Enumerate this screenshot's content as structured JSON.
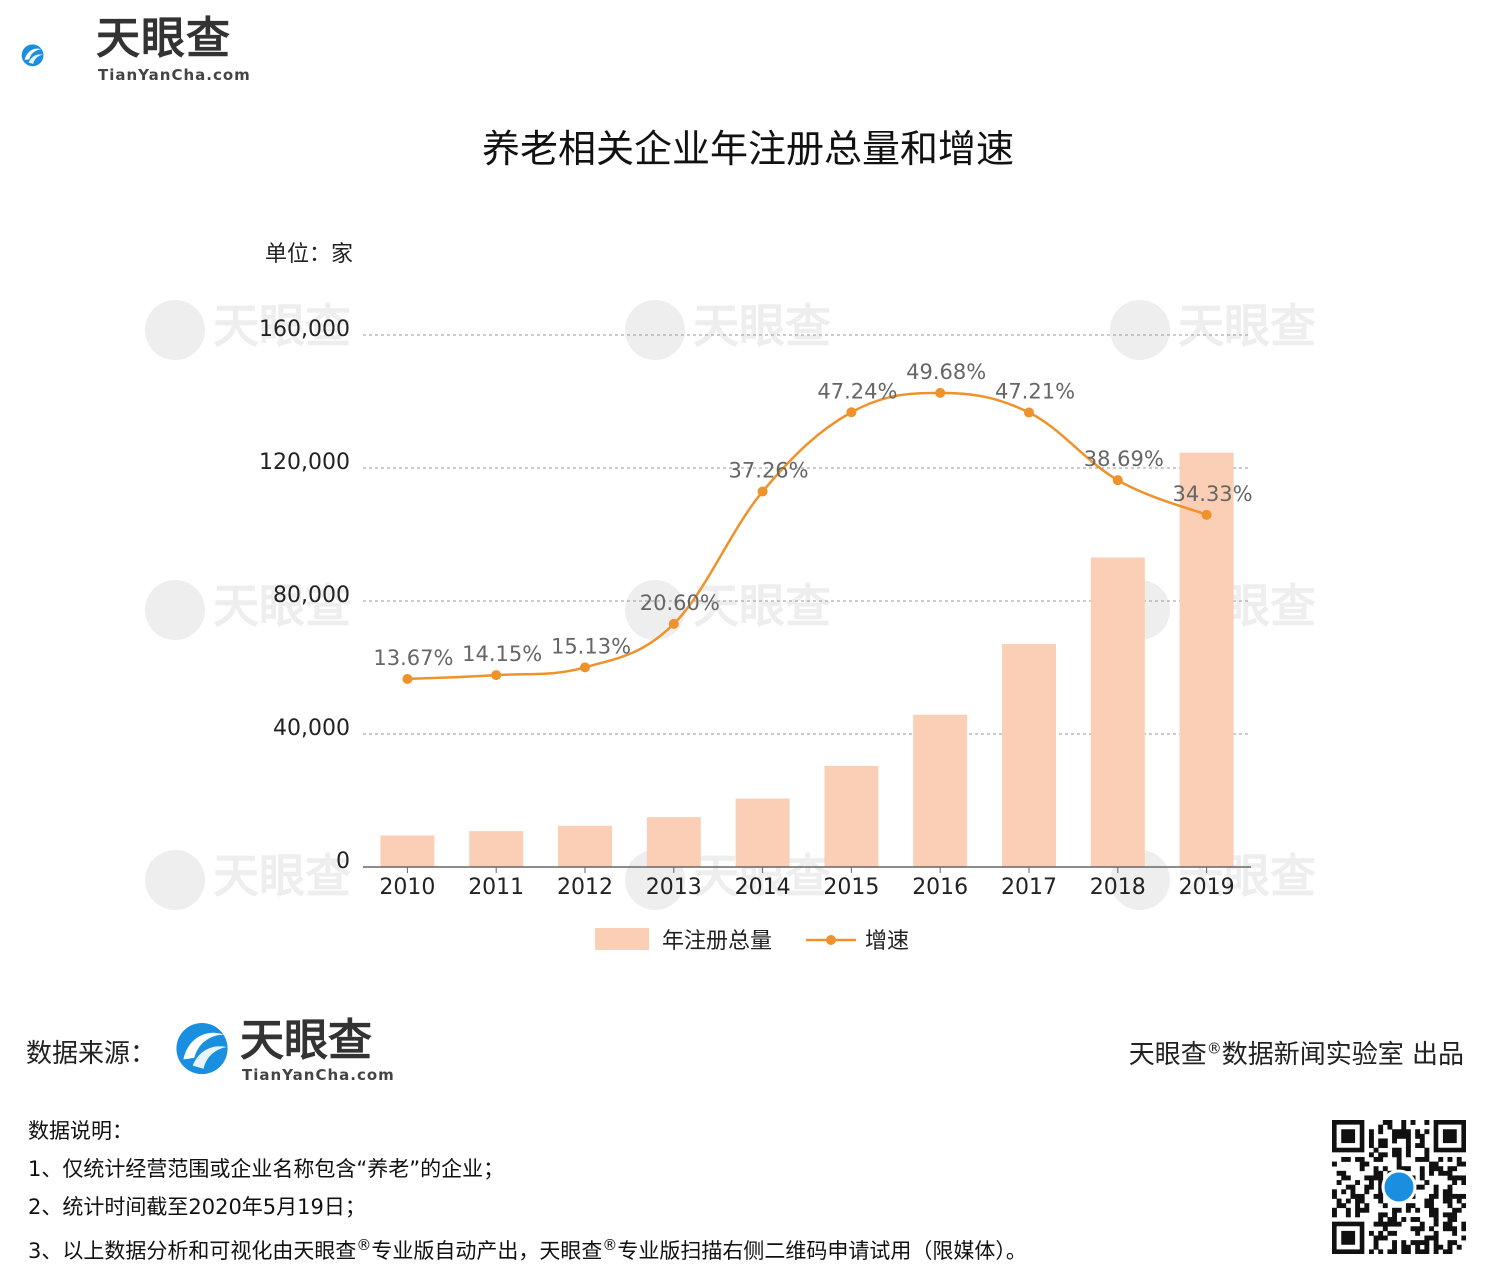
{
  "brand": {
    "name": "天眼查",
    "domain": "TianYanCha.com"
  },
  "title": "养老相关企业年注册总量和增速",
  "unit": "单位：家",
  "colors": {
    "bar": "#fbcfb5",
    "line": "#f0922b",
    "grid": "#999999",
    "label": "#666666"
  },
  "chart_data": {
    "type": "bar",
    "categories": [
      "2010",
      "2011",
      "2012",
      "2013",
      "2014",
      "2015",
      "2016",
      "2017",
      "2018",
      "2019"
    ],
    "series": [
      {
        "name": "年注册总量",
        "type": "bar",
        "values": [
          9500,
          10800,
          12400,
          15000,
          20600,
          30400,
          45800,
          67100,
          93100,
          124600
        ]
      },
      {
        "name": "增速",
        "type": "line",
        "values": [
          13.67,
          14.15,
          15.13,
          20.6,
          37.26,
          47.24,
          49.68,
          47.21,
          38.69,
          34.33
        ],
        "labels": [
          "13.67%",
          "14.15%",
          "15.13%",
          "20.60%",
          "37.26%",
          "47.24%",
          "49.68%",
          "47.21%",
          "38.69%",
          "34.33%"
        ]
      }
    ],
    "ylim": [
      0,
      160000
    ],
    "ytick_labels": [
      "0",
      "40,000",
      "80,000",
      "120,000",
      "160,000"
    ],
    "grid": true,
    "legend_position": "bottom"
  },
  "footer": {
    "source_label": "数据来源：",
    "credit_a": "天眼查",
    "credit_reg": "®",
    "credit_b": "数据新闻实验室 出品",
    "notes_title": "数据说明：",
    "note1": "1、仅统计经营范围或企业名称包含“养老”的企业；",
    "note2": "2、统计时间截至2020年5月19日；",
    "note3_a": "3、以上数据分析和可视化由天眼查",
    "note3_reg1": "®",
    "note3_b": "专业版自动产出，天眼查",
    "note3_reg2": "®",
    "note3_c": "专业版扫描右侧二维码申请试用（限媒体）。"
  }
}
